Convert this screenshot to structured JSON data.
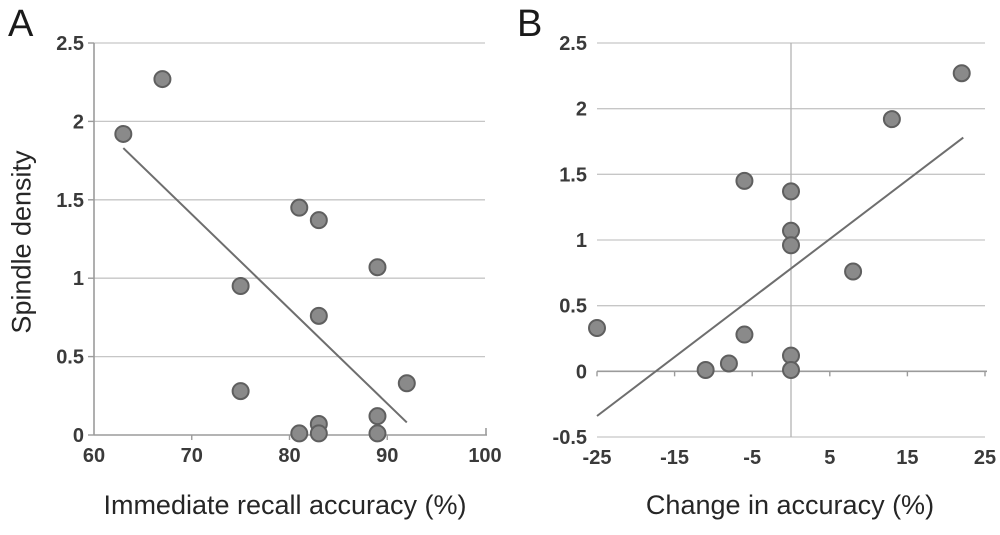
{
  "figure": {
    "panels": [
      {
        "label": "A",
        "xlabel": "Immediate recall accuracy (%)",
        "ylabel": "Spindle density"
      },
      {
        "label": "B",
        "xlabel": "Change in accuracy (%)",
        "ylabel": "Spindle density"
      }
    ]
  },
  "chart_data": [
    {
      "type": "scatter",
      "panel": "A",
      "title": "",
      "xlabel": "Immediate recall accuracy (%)",
      "ylabel": "Spindle density",
      "xlim": [
        60,
        100
      ],
      "ylim": [
        0,
        2.5
      ],
      "xticks": [
        60,
        70,
        80,
        90,
        100
      ],
      "yticks": [
        0,
        0.5,
        1,
        1.5,
        2,
        2.5
      ],
      "grid": "horizontal gridlines at every y tick",
      "legend": "none",
      "points": [
        [
          63,
          1.92
        ],
        [
          67,
          2.27
        ],
        [
          75,
          0.95
        ],
        [
          75,
          0.28
        ],
        [
          81,
          1.45
        ],
        [
          81,
          0.01
        ],
        [
          83,
          1.37
        ],
        [
          83,
          0.76
        ],
        [
          83,
          0.07
        ],
        [
          83,
          0.01
        ],
        [
          89,
          1.07
        ],
        [
          89,
          0.12
        ],
        [
          89,
          0.01
        ],
        [
          92,
          0.33
        ]
      ],
      "trendline": {
        "x1": 63,
        "y1": 1.83,
        "x2": 92,
        "y2": 0.08,
        "direction": "negative"
      }
    },
    {
      "type": "scatter",
      "panel": "B",
      "title": "",
      "xlabel": "Change in accuracy (%)",
      "ylabel": "Spindle density",
      "xlim": [
        -25,
        25
      ],
      "ylim": [
        -0.5,
        2.5
      ],
      "xticks": [
        -25,
        -15,
        -5,
        5,
        15,
        25
      ],
      "yticks": [
        -0.5,
        0,
        0.5,
        1,
        1.5,
        2,
        2.5
      ],
      "grid": "horizontal gridlines at every y tick plus vertical line at x=0; x-axis drawn at y=0",
      "legend": "none",
      "points": [
        [
          -25,
          0.33
        ],
        [
          -11,
          0.01
        ],
        [
          -8,
          0.06
        ],
        [
          -6,
          1.45
        ],
        [
          -6,
          0.28
        ],
        [
          0,
          1.37
        ],
        [
          0,
          1.07
        ],
        [
          0,
          0.96
        ],
        [
          0,
          0.12
        ],
        [
          0,
          0.01
        ],
        [
          8,
          0.76
        ],
        [
          13,
          1.92
        ],
        [
          22,
          2.27
        ]
      ],
      "trendline": {
        "x1": -25,
        "y1": -0.34,
        "x2": 22.2,
        "y2": 1.78,
        "direction": "positive"
      }
    }
  ],
  "style": {
    "colors": {
      "background": "#ffffff",
      "point_fill": "#8a8a8a",
      "point_stroke": "#5f5f5f",
      "gridline": "#c6c6c6",
      "axis": "#9b9b9b",
      "trendline": "#6e6e6e",
      "tick_label": "#3a3a3a"
    }
  }
}
